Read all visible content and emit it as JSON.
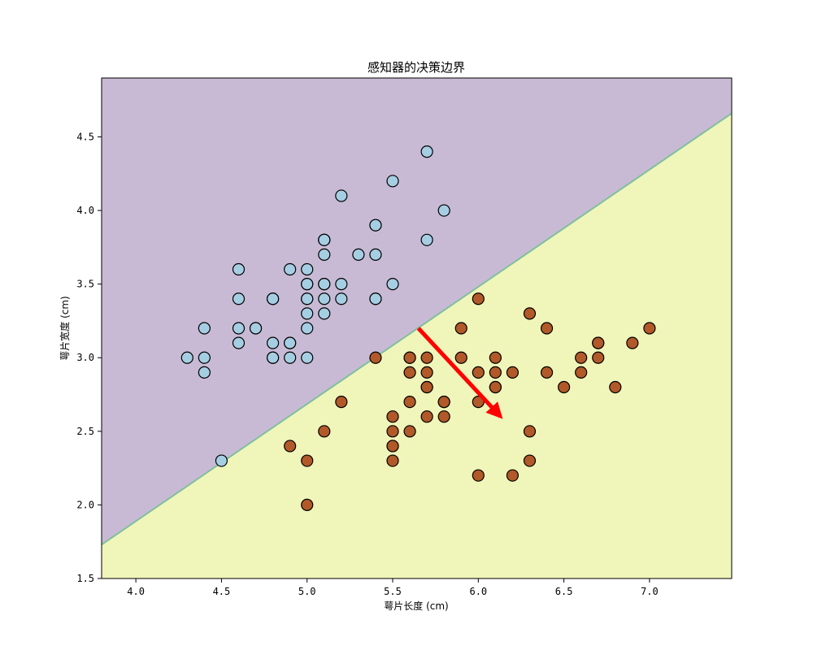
{
  "chart_data": {
    "type": "scatter",
    "title": "感知器的决策边界",
    "xlabel": "萼片长度 (cm)",
    "ylabel": "萼片宽度 (cm)",
    "xlim": [
      3.8,
      7.48
    ],
    "ylim": [
      1.5,
      4.9
    ],
    "xticks": [
      "4.0",
      "4.5",
      "5.0",
      "5.5",
      "6.0",
      "6.5",
      "7.0"
    ],
    "yticks": [
      "1.5",
      "2.0",
      "2.5",
      "3.0",
      "3.5",
      "4.0",
      "4.5"
    ],
    "grid": false,
    "legend": "none",
    "colors": {
      "region_upper": "#c8bad4",
      "region_lower": "#f0f5b9",
      "boundary": "#7fbf9f",
      "class_a": "#a6cee3",
      "class_b": "#b15928",
      "marker_edge": "#000000",
      "arrow": "#ff0000"
    },
    "decision_boundary": {
      "x": [
        3.8,
        7.48
      ],
      "y": [
        1.73,
        4.66
      ]
    },
    "normal_vector_arrow": {
      "from": [
        5.65,
        3.2
      ],
      "to": [
        6.13,
        2.6
      ]
    },
    "series": [
      {
        "x": [
          5.1,
          4.9,
          4.7,
          4.6,
          5.0,
          5.4,
          4.6,
          5.0,
          4.4,
          4.9,
          5.4,
          4.8,
          4.8,
          4.3,
          5.8,
          5.7,
          5.4,
          5.1,
          5.7,
          5.1,
          5.4,
          5.1,
          4.6,
          5.1,
          4.8,
          5.0,
          5.0,
          5.2,
          5.2,
          4.7,
          4.8,
          5.4,
          5.2,
          5.5,
          4.9,
          5.0,
          5.5,
          4.9,
          4.4,
          5.1,
          5.0,
          4.5,
          4.4,
          5.0,
          5.1,
          4.8,
          5.1,
          4.6,
          5.3,
          5.0
        ],
        "y": [
          3.5,
          3.0,
          3.2,
          3.1,
          3.6,
          3.9,
          3.4,
          3.4,
          2.9,
          3.1,
          3.7,
          3.4,
          3.0,
          3.0,
          4.0,
          4.4,
          3.9,
          3.5,
          3.8,
          3.8,
          3.4,
          3.7,
          3.6,
          3.3,
          3.4,
          3.0,
          3.4,
          3.5,
          3.4,
          3.2,
          3.1,
          3.4,
          4.1,
          4.2,
          3.1,
          3.2,
          3.5,
          3.6,
          3.0,
          3.4,
          3.5,
          2.3,
          3.2,
          3.5,
          3.8,
          3.0,
          3.8,
          3.2,
          3.7,
          3.3
        ]
      },
      {
        "x": [
          7.0,
          6.4,
          6.9,
          5.5,
          6.5,
          5.7,
          6.3,
          4.9,
          6.6,
          5.2,
          5.0,
          5.9,
          6.0,
          6.1,
          5.6,
          6.7,
          5.6,
          5.8,
          6.2,
          5.6,
          5.9,
          6.1,
          6.3,
          6.1,
          6.4,
          6.6,
          6.8,
          6.7,
          6.0,
          5.7,
          5.5,
          5.5,
          5.8,
          6.0,
          5.4,
          6.0,
          6.7,
          6.3,
          5.6,
          5.5,
          5.5,
          6.1,
          5.8,
          5.0,
          5.6,
          5.7,
          5.7,
          6.2,
          5.1,
          5.7
        ],
        "y": [
          3.2,
          3.2,
          3.1,
          2.3,
          2.8,
          2.8,
          3.3,
          2.4,
          2.9,
          2.7,
          2.0,
          3.0,
          2.2,
          2.9,
          2.9,
          3.1,
          3.0,
          2.7,
          2.2,
          2.5,
          3.2,
          2.8,
          2.5,
          2.8,
          2.9,
          3.0,
          2.8,
          3.0,
          2.9,
          2.6,
          2.4,
          2.4,
          2.7,
          2.7,
          3.0,
          3.4,
          3.1,
          2.3,
          3.0,
          2.5,
          2.6,
          3.0,
          2.6,
          2.3,
          2.7,
          3.0,
          2.9,
          2.9,
          2.5,
          2.8
        ]
      }
    ]
  }
}
